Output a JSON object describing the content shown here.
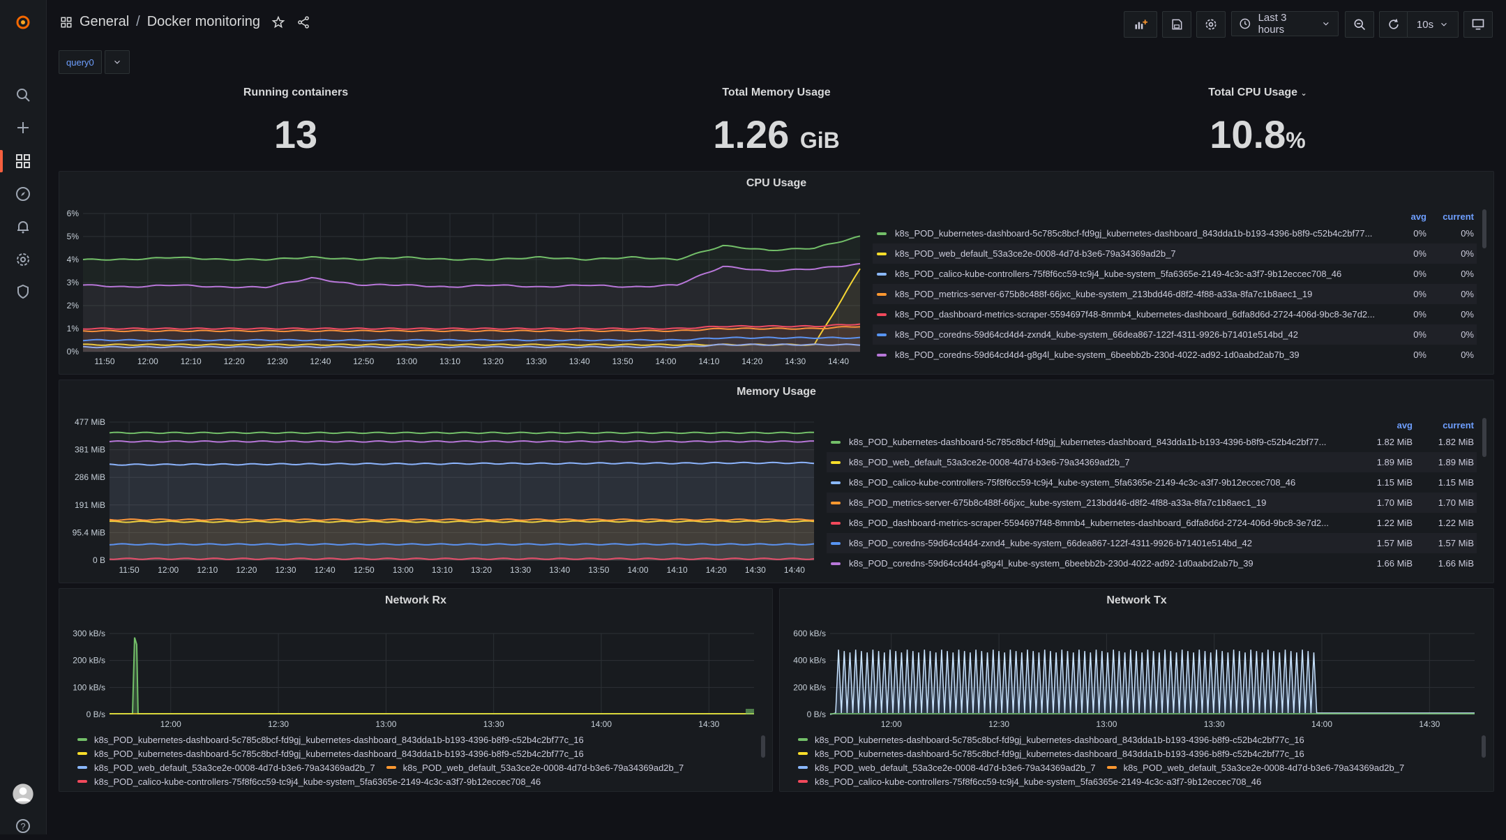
{
  "colors": {
    "accent": "#f55f3e",
    "link": "#6e9fff",
    "series": [
      "#73bf69",
      "#fade2a",
      "#8ab8ff",
      "#ff9830",
      "#f2495c",
      "#5794f2",
      "#b877d9",
      "#9fa7ff",
      "#ffcb7d",
      "#96d98d",
      "#c8f2c2",
      "#37872d"
    ]
  },
  "sidebar": {
    "items": [
      {
        "icon": "grafana-logo-icon"
      },
      {
        "icon": "search-icon"
      },
      {
        "icon": "plus-icon"
      },
      {
        "icon": "dashboards-icon"
      },
      {
        "icon": "compass-icon"
      },
      {
        "icon": "bell-icon"
      },
      {
        "icon": "gear-icon"
      },
      {
        "icon": "shield-icon"
      },
      {
        "icon": "avatar-icon"
      },
      {
        "icon": "help-icon"
      }
    ]
  },
  "header": {
    "folder": "General",
    "separator": "/",
    "title": "Docker monitoring",
    "time_range": "Last 3 hours",
    "refresh": "10s"
  },
  "variables": {
    "query_label": "query0"
  },
  "stats": [
    {
      "title": "Running containers",
      "value": "13",
      "unit": ""
    },
    {
      "title": "Total Memory Usage",
      "value": "1.26",
      "unit": "GiB"
    },
    {
      "title": "Total CPU Usage",
      "value": "10.8",
      "unit": "%"
    }
  ],
  "cpu_panel": {
    "title": "CPU Usage",
    "legend_headers": {
      "avg": "avg",
      "current": "current"
    },
    "legend": [
      {
        "name": "k8s_POD_kubernetes-dashboard-5c785c8bcf-fd9gj_kubernetes-dashboard_843dda1b-b193-4396-b8f9-c52b4c2bf77...",
        "avg": "0%",
        "current": "0%"
      },
      {
        "name": "k8s_POD_web_default_53a3ce2e-0008-4d7d-b3e6-79a34369ad2b_7",
        "avg": "0%",
        "current": "0%"
      },
      {
        "name": "k8s_POD_calico-kube-controllers-75f8f6cc59-tc9j4_kube-system_5fa6365e-2149-4c3c-a3f7-9b12eccec708_46",
        "avg": "0%",
        "current": "0%"
      },
      {
        "name": "k8s_POD_metrics-server-675b8c488f-66jxc_kube-system_213bdd46-d8f2-4f88-a33a-8fa7c1b8aec1_19",
        "avg": "0%",
        "current": "0%"
      },
      {
        "name": "k8s_POD_dashboard-metrics-scraper-5594697f48-8mmb4_kubernetes-dashboard_6dfa8d6d-2724-406d-9bc8-3e7d2...",
        "avg": "0%",
        "current": "0%"
      },
      {
        "name": "k8s_POD_coredns-59d64cd4d4-zxnd4_kube-system_66dea867-122f-4311-9926-b71401e514bd_42",
        "avg": "0%",
        "current": "0%"
      },
      {
        "name": "k8s_POD_coredns-59d64cd4d4-g8g4l_kube-system_6beebb2b-230d-4022-ad92-1d0aabd2ab7b_39",
        "avg": "0%",
        "current": "0%"
      }
    ]
  },
  "memory_panel": {
    "title": "Memory Usage",
    "legend_headers": {
      "avg": "avg",
      "current": "current"
    },
    "legend": [
      {
        "name": "k8s_POD_kubernetes-dashboard-5c785c8bcf-fd9gj_kubernetes-dashboard_843dda1b-b193-4396-b8f9-c52b4c2bf77...",
        "avg": "1.82 MiB",
        "current": "1.82 MiB"
      },
      {
        "name": "k8s_POD_web_default_53a3ce2e-0008-4d7d-b3e6-79a34369ad2b_7",
        "avg": "1.89 MiB",
        "current": "1.89 MiB"
      },
      {
        "name": "k8s_POD_calico-kube-controllers-75f8f6cc59-tc9j4_kube-system_5fa6365e-2149-4c3c-a3f7-9b12eccec708_46",
        "avg": "1.15 MiB",
        "current": "1.15 MiB"
      },
      {
        "name": "k8s_POD_metrics-server-675b8c488f-66jxc_kube-system_213bdd46-d8f2-4f88-a33a-8fa7c1b8aec1_19",
        "avg": "1.70 MiB",
        "current": "1.70 MiB"
      },
      {
        "name": "k8s_POD_dashboard-metrics-scraper-5594697f48-8mmb4_kubernetes-dashboard_6dfa8d6d-2724-406d-9bc8-3e7d2...",
        "avg": "1.22 MiB",
        "current": "1.22 MiB"
      },
      {
        "name": "k8s_POD_coredns-59d64cd4d4-zxnd4_kube-system_66dea867-122f-4311-9926-b71401e514bd_42",
        "avg": "1.57 MiB",
        "current": "1.57 MiB"
      },
      {
        "name": "k8s_POD_coredns-59d64cd4d4-g8g4l_kube-system_6beebb2b-230d-4022-ad92-1d0aabd2ab7b_39",
        "avg": "1.66 MiB",
        "current": "1.66 MiB"
      }
    ]
  },
  "net_rx_panel": {
    "title": "Network Rx",
    "legend_rows": [
      [
        {
          "name": "k8s_POD_kubernetes-dashboard-5c785c8bcf-fd9gj_kubernetes-dashboard_843dda1b-b193-4396-b8f9-c52b4c2bf77c_16",
          "color": "#73bf69"
        }
      ],
      [
        {
          "name": "k8s_POD_kubernetes-dashboard-5c785c8bcf-fd9gj_kubernetes-dashboard_843dda1b-b193-4396-b8f9-c52b4c2bf77c_16",
          "color": "#fade2a"
        }
      ],
      [
        {
          "name": "k8s_POD_web_default_53a3ce2e-0008-4d7d-b3e6-79a34369ad2b_7",
          "color": "#8ab8ff"
        },
        {
          "name": "k8s_POD_web_default_53a3ce2e-0008-4d7d-b3e6-79a34369ad2b_7",
          "color": "#ff9830"
        }
      ],
      [
        {
          "name": "k8s_POD_calico-kube-controllers-75f8f6cc59-tc9j4_kube-system_5fa6365e-2149-4c3c-a3f7-9b12eccec708_46",
          "color": "#f2495c"
        }
      ]
    ]
  },
  "net_tx_panel": {
    "title": "Network Tx",
    "legend_rows": [
      [
        {
          "name": "k8s_POD_kubernetes-dashboard-5c785c8bcf-fd9gj_kubernetes-dashboard_843dda1b-b193-4396-b8f9-c52b4c2bf77c_16",
          "color": "#73bf69"
        }
      ],
      [
        {
          "name": "k8s_POD_kubernetes-dashboard-5c785c8bcf-fd9gj_kubernetes-dashboard_843dda1b-b193-4396-b8f9-c52b4c2bf77c_16",
          "color": "#fade2a"
        }
      ],
      [
        {
          "name": "k8s_POD_web_default_53a3ce2e-0008-4d7d-b3e6-79a34369ad2b_7",
          "color": "#8ab8ff"
        },
        {
          "name": "k8s_POD_web_default_53a3ce2e-0008-4d7d-b3e6-79a34369ad2b_7",
          "color": "#ff9830"
        }
      ],
      [
        {
          "name": "k8s_POD_calico-kube-controllers-75f8f6cc59-tc9j4_kube-system_5fa6365e-2149-4c3c-a3f7-9b12eccec708_46",
          "color": "#f2495c"
        }
      ]
    ]
  },
  "chart_data": [
    {
      "type": "line",
      "title": "CPU Usage",
      "x": [
        "11:50",
        "12:00",
        "12:10",
        "12:20",
        "12:30",
        "12:40",
        "12:50",
        "13:00",
        "13:10",
        "13:20",
        "13:30",
        "13:40",
        "13:50",
        "14:00",
        "14:10",
        "14:20",
        "14:30",
        "14:40"
      ],
      "yticks": [
        "0%",
        "1%",
        "2%",
        "3%",
        "4%",
        "5%",
        "6%"
      ],
      "ylim": [
        0,
        6
      ],
      "series": [
        {
          "values": [
            4.0,
            4.0,
            4.1,
            4.0,
            4.0,
            4.1,
            4.0,
            4.1,
            4.0,
            4.0,
            4.1,
            4.0,
            4.1,
            4.0,
            4.6,
            4.4,
            4.5,
            5.0
          ]
        },
        {
          "values": [
            0.3,
            0.3,
            0.3,
            0.3,
            0.3,
            0.3,
            0.3,
            0.3,
            0.3,
            0.3,
            0.3,
            0.3,
            0.3,
            0.3,
            0.3,
            0.3,
            0.3,
            3.6
          ]
        },
        {
          "values": [
            0.2,
            0.2,
            0.2,
            0.2,
            0.2,
            0.2,
            0.2,
            0.2,
            0.2,
            0.2,
            0.2,
            0.2,
            0.2,
            0.2,
            0.3,
            0.3,
            0.3,
            0.3
          ]
        },
        {
          "values": [
            0.9,
            0.9,
            0.9,
            0.9,
            0.9,
            0.9,
            0.9,
            0.9,
            0.9,
            0.9,
            0.9,
            0.9,
            0.9,
            0.9,
            1.0,
            1.0,
            1.0,
            1.1
          ]
        },
        {
          "values": [
            1.0,
            1.0,
            1.0,
            1.0,
            1.0,
            1.0,
            1.0,
            1.0,
            1.0,
            1.0,
            1.0,
            1.0,
            1.0,
            1.0,
            1.1,
            1.1,
            1.1,
            1.2
          ]
        },
        {
          "values": [
            0.5,
            0.5,
            0.5,
            0.5,
            0.5,
            0.5,
            0.5,
            0.5,
            0.5,
            0.5,
            0.5,
            0.5,
            0.5,
            0.5,
            0.6,
            0.6,
            0.6,
            0.6
          ]
        },
        {
          "values": [
            2.9,
            2.8,
            2.9,
            2.8,
            2.8,
            3.2,
            2.9,
            2.9,
            2.8,
            2.9,
            2.8,
            2.9,
            2.8,
            2.9,
            3.7,
            3.5,
            3.6,
            3.8
          ]
        }
      ]
    },
    {
      "type": "line",
      "title": "Memory Usage",
      "x": [
        "11:50",
        "12:00",
        "12:10",
        "12:20",
        "12:30",
        "12:40",
        "12:50",
        "13:00",
        "13:10",
        "13:20",
        "13:30",
        "13:40",
        "13:50",
        "14:00",
        "14:10",
        "14:20",
        "14:30",
        "14:40"
      ],
      "yticks": [
        "0 B",
        "95.4 MiB",
        "191 MiB",
        "286 MiB",
        "381 MiB",
        "477 MiB"
      ],
      "ylim": [
        0,
        477
      ],
      "series": [
        {
          "values": [
            440,
            440,
            440,
            440,
            440,
            440,
            440,
            440,
            440,
            440,
            440,
            440,
            440,
            440,
            440,
            440,
            440,
            440
          ]
        },
        {
          "values": [
            133,
            133,
            133,
            133,
            133,
            133,
            133,
            133,
            133,
            133,
            133,
            134,
            134,
            134,
            134,
            134,
            134,
            134
          ]
        },
        {
          "values": [
            330,
            330,
            331,
            331,
            332,
            332,
            333,
            333,
            333,
            334,
            334,
            334,
            335,
            335,
            335,
            336,
            336,
            336
          ]
        },
        {
          "values": [
            140,
            140,
            140,
            140,
            140,
            140,
            140,
            140,
            140,
            140,
            140,
            140,
            140,
            140,
            140,
            140,
            140,
            140
          ]
        },
        {
          "values": [
            5,
            5,
            5,
            5,
            5,
            5,
            5,
            5,
            5,
            5,
            5,
            5,
            5,
            5,
            5,
            5,
            5,
            5
          ]
        },
        {
          "values": [
            55,
            55,
            55,
            55,
            55,
            55,
            55,
            55,
            55,
            55,
            55,
            55,
            55,
            55,
            55,
            55,
            55,
            55
          ]
        },
        {
          "values": [
            410,
            410,
            410,
            410,
            410,
            410,
            410,
            410,
            410,
            410,
            410,
            410,
            410,
            410,
            410,
            410,
            410,
            410
          ]
        }
      ]
    },
    {
      "type": "line",
      "title": "Network Rx",
      "x": [
        "12:00",
        "12:30",
        "13:00",
        "13:30",
        "14:00",
        "14:30"
      ],
      "yticks": [
        "0 B/s",
        "100 kB/s",
        "200 kB/s",
        "300 kB/s"
      ],
      "ylim": [
        0,
        300
      ],
      "spike": {
        "at": "11:55",
        "value": 285
      }
    },
    {
      "type": "line",
      "title": "Network Tx",
      "x": [
        "12:00",
        "12:30",
        "13:00",
        "13:30",
        "14:00",
        "14:30"
      ],
      "yticks": [
        "0 B/s",
        "200 kB/s",
        "400 kB/s",
        "600 kB/s"
      ],
      "ylim": [
        0,
        600
      ],
      "oscillation": {
        "from": "11:50",
        "to": "14:03",
        "peak": 480
      }
    }
  ]
}
